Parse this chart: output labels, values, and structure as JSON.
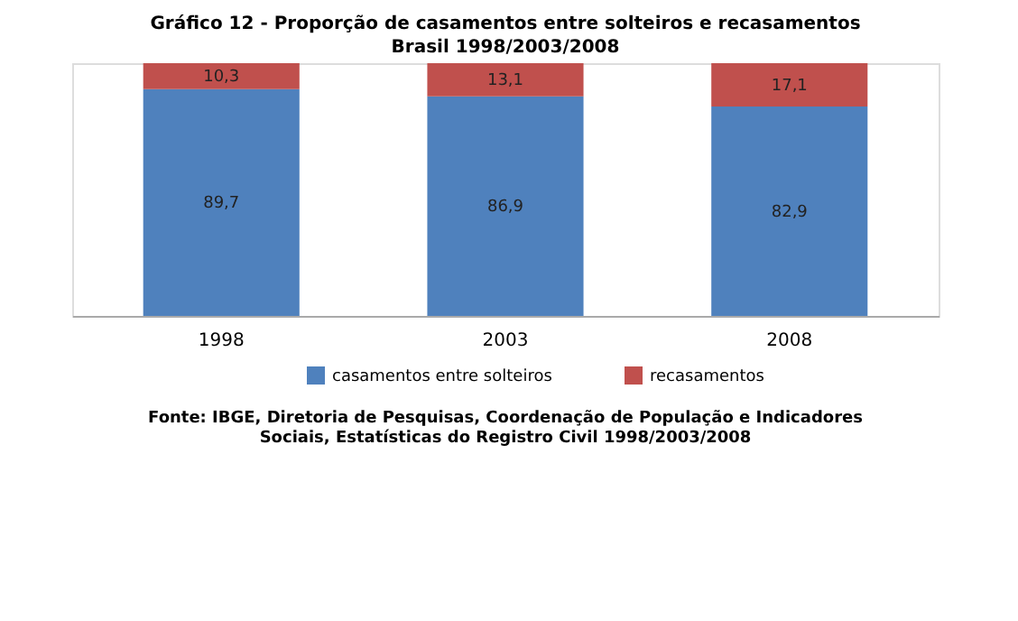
{
  "chart_data": {
    "type": "bar",
    "title": "Gráfico 12 - Proporção de casamentos entre solteiros e recasamentos",
    "subtitle": "Brasil 1998/2003/2008",
    "categories": [
      "1998",
      "2003",
      "2008"
    ],
    "stacked": true,
    "tick_labels": "x",
    "grid": false,
    "legend": "bottom",
    "series": [
      {
        "name": "casamentos entre solteiros",
        "color": "#4f81bd",
        "values": [
          89.7,
          86.9,
          82.9
        ],
        "value_labels": [
          "89,7",
          "86,9",
          "82,9"
        ]
      },
      {
        "name": "recasamentos",
        "color": "#c0504d",
        "values": [
          10.3,
          13.1,
          17.1
        ],
        "value_labels": [
          "10,3",
          "13,1",
          "17,1"
        ]
      }
    ],
    "annotations": [
      "Fonte: IBGE, Diretoria de Pesquisas, Coordenação de População e Indicadores Sociais, Estatísticas do Registro Civil 1998/2003/2008"
    ]
  }
}
